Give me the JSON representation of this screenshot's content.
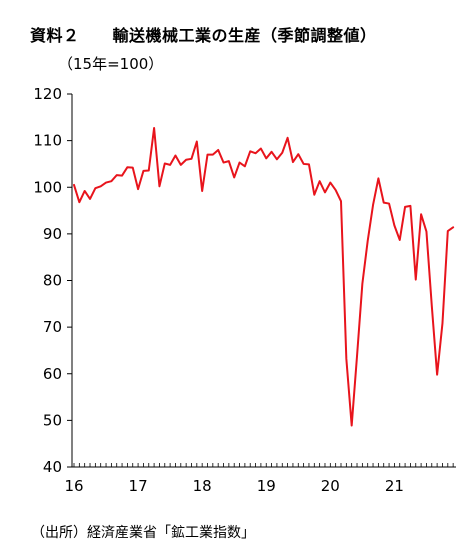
{
  "header": {
    "title": "資料２　　輸送機械工業の生産（季節調整値）",
    "unit_note": "（15年=100）"
  },
  "footer": {
    "source": "（出所）経済産業省「鉱工業指数」"
  },
  "chart_data": {
    "type": "line",
    "title": "輸送機械工業の生産（季節調整値）",
    "ylabel": "（15年=100）",
    "xlabel": "",
    "ylim": [
      40,
      120
    ],
    "yticks": [
      40,
      50,
      60,
      70,
      80,
      90,
      100,
      110,
      120
    ],
    "xtick_labels": [
      "16",
      "17",
      "18",
      "19",
      "20",
      "21"
    ],
    "x_start": "2016-01",
    "x_end": "2021-12",
    "x_minor_ticks": "monthly",
    "grid": false,
    "legend": "none",
    "series": [
      {
        "color": "#e8141c",
        "values": [
          100.5,
          96.8,
          99.2,
          97.5,
          99.8,
          100.2,
          101.0,
          101.3,
          102.6,
          102.5,
          104.3,
          104.2,
          99.6,
          103.5,
          103.6,
          112.7,
          100.2,
          105.1,
          104.8,
          106.8,
          104.8,
          105.9,
          106.1,
          109.8,
          99.2,
          107.0,
          107.0,
          108.0,
          105.3,
          105.6,
          102.1,
          105.3,
          104.5,
          107.7,
          107.3,
          108.3,
          106.2,
          107.6,
          106.0,
          107.4,
          110.6,
          105.4,
          107.1,
          105.0,
          104.9,
          98.4,
          101.3,
          98.9,
          101.0,
          99.4,
          97.0,
          63.2,
          48.9,
          63.8,
          79.3,
          88.5,
          96.2,
          101.9,
          96.7,
          96.5,
          91.8,
          88.7,
          95.8,
          96.0,
          80.2,
          94.2,
          90.5,
          74.6,
          59.8,
          70.8,
          90.6,
          91.4
        ]
      }
    ]
  }
}
